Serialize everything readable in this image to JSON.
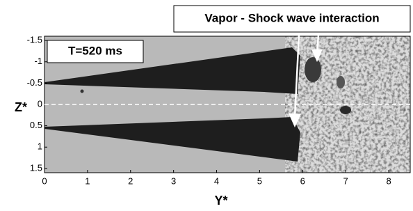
{
  "chart_data": {
    "type": "image",
    "x_label": "Y*",
    "y_label": "Z*",
    "xlim": [
      0,
      8.5
    ],
    "xticks": [
      0,
      1,
      2,
      3,
      4,
      5,
      6,
      7,
      8
    ],
    "ylim": [
      -1.6,
      1.6
    ],
    "yticks": [
      -1.5,
      -1,
      -0.5,
      0,
      0.5,
      1,
      1.5
    ],
    "y_inverted": true,
    "hline": 0,
    "annotations": [
      "T=520 ms",
      "Vapor - Shock wave interaction"
    ]
  }
}
